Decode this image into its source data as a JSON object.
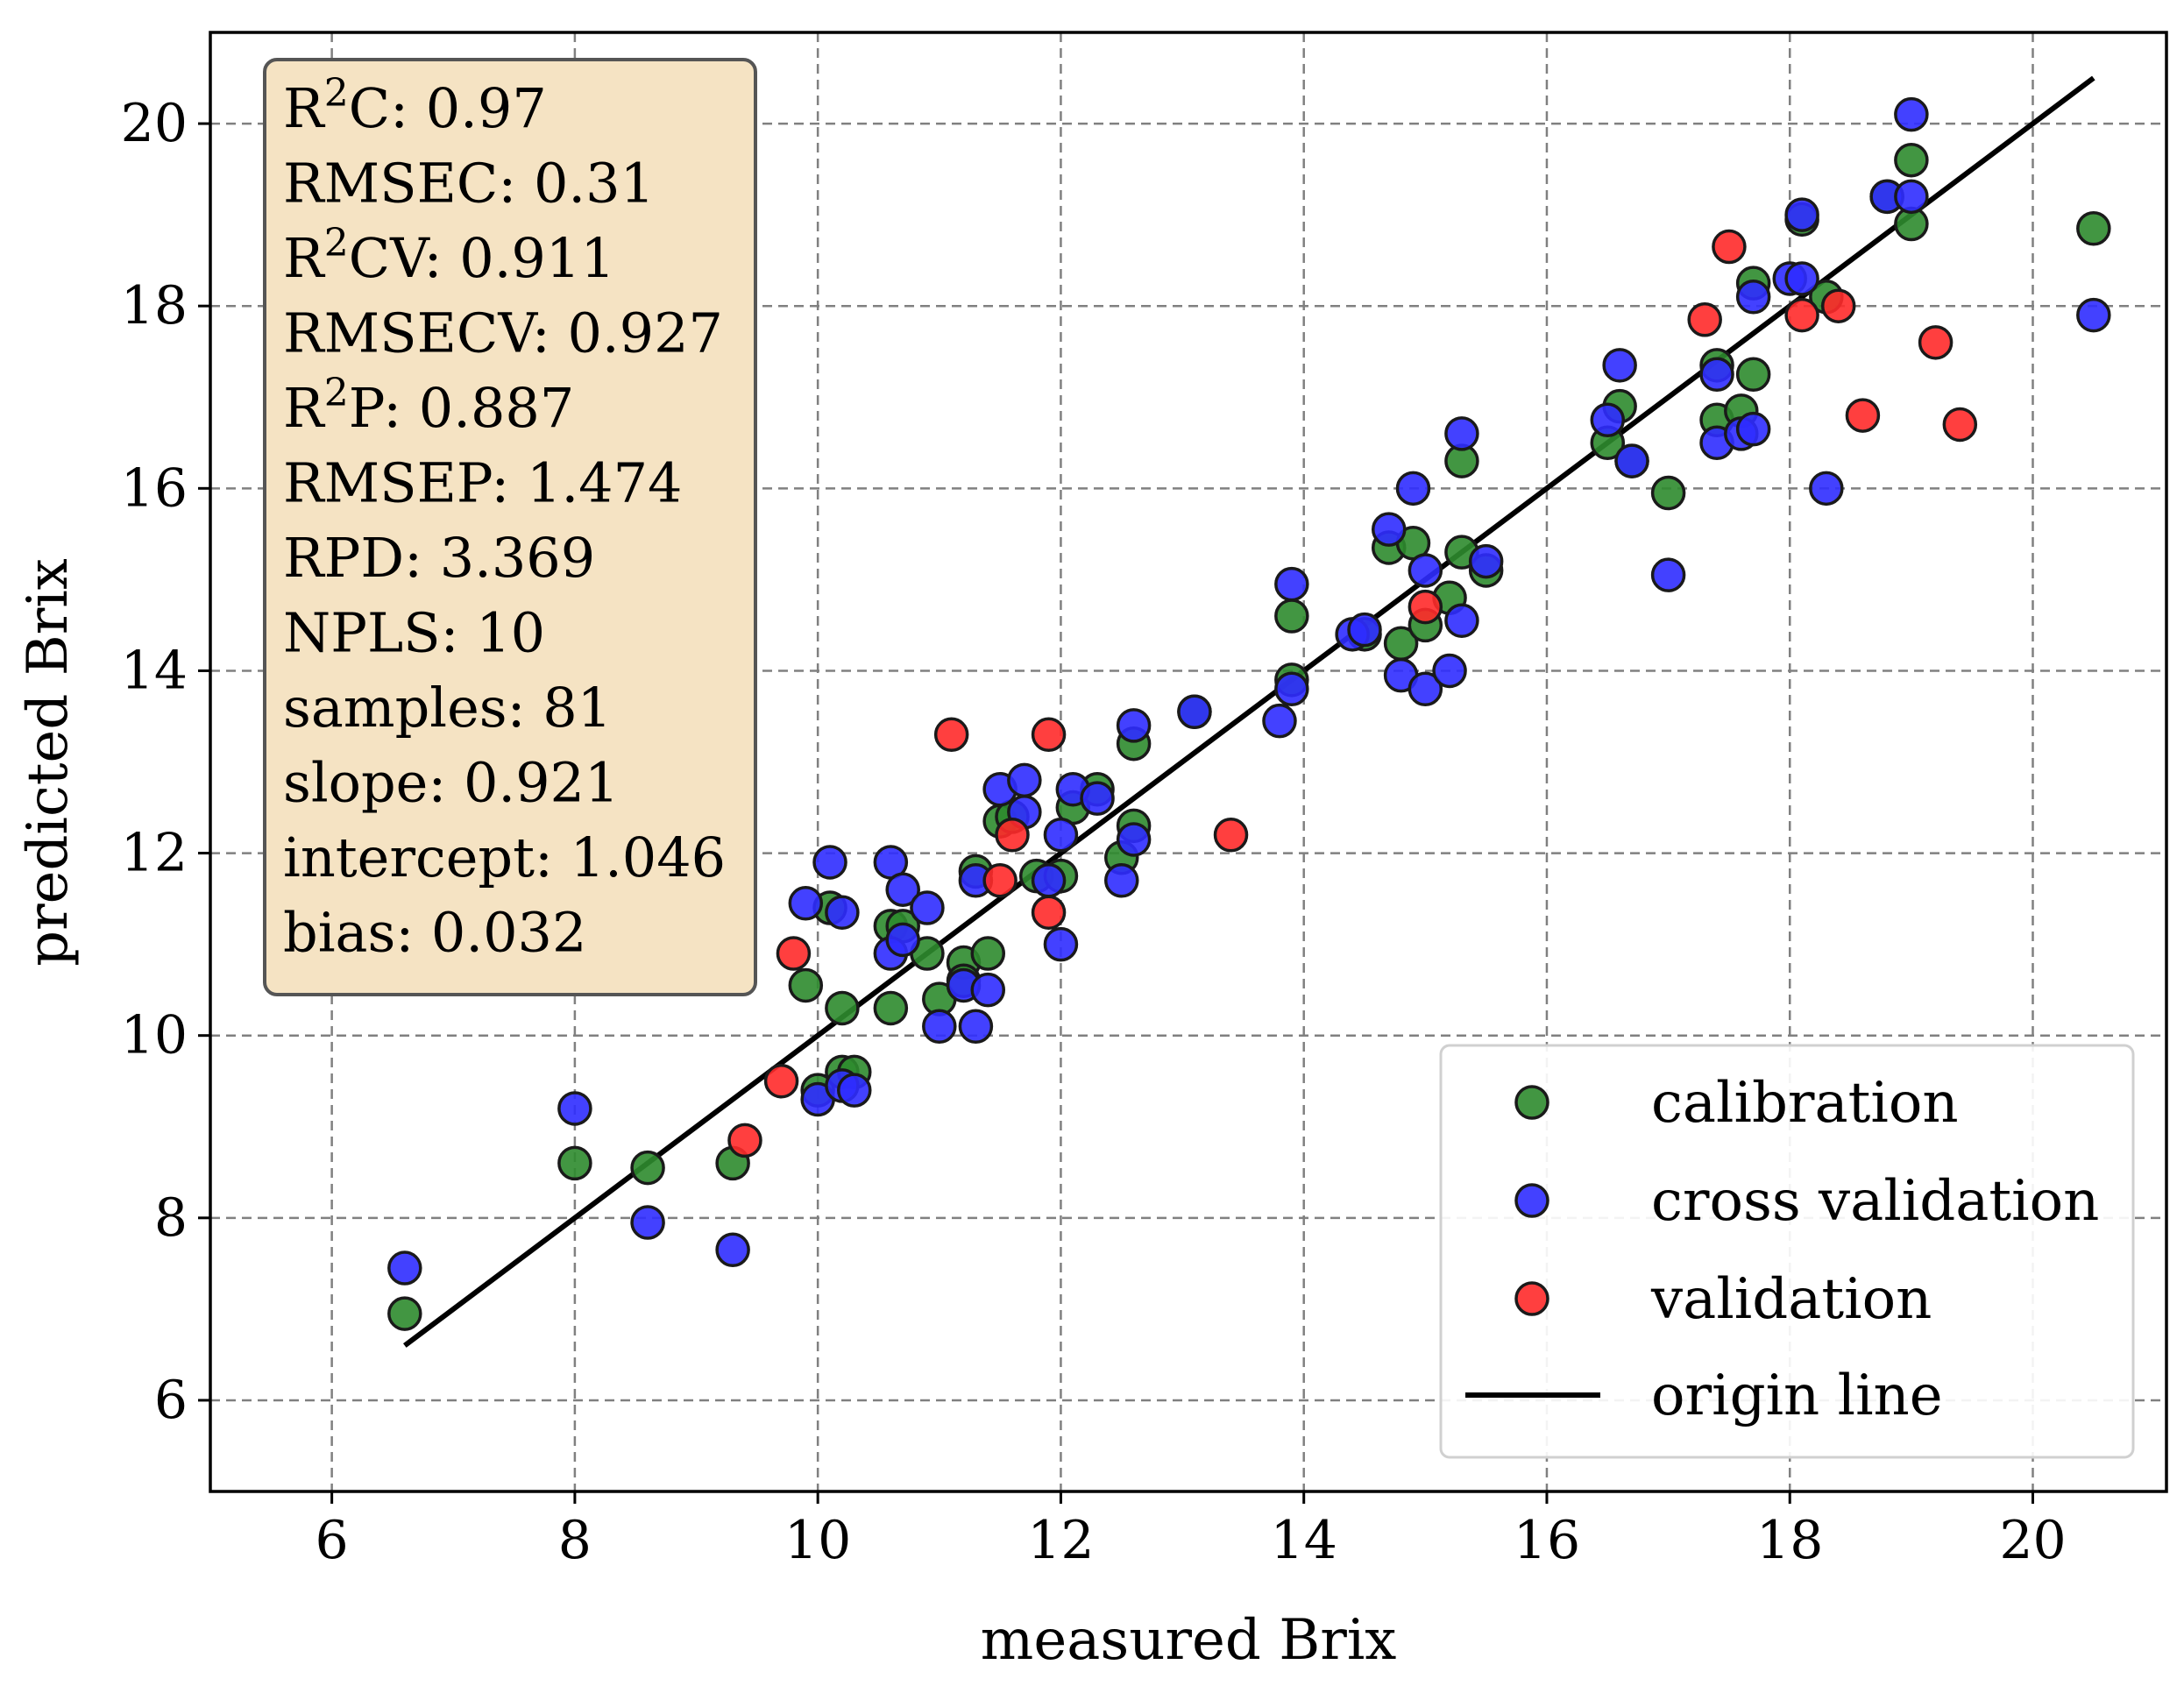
{
  "chart_data": {
    "type": "scatter",
    "xlabel": "measured Brix",
    "ylabel": "predicted Brix",
    "xlim": [
      5,
      21.1
    ],
    "ylim": [
      5,
      21
    ],
    "xticks": [
      6,
      8,
      10,
      12,
      14,
      16,
      18,
      20
    ],
    "yticks": [
      6,
      8,
      10,
      12,
      14,
      16,
      18,
      20
    ],
    "grid": true,
    "colors": {
      "calibration": "#2e8b2e",
      "cross_validation": "#2f2cff",
      "validation": "#ff2a2a",
      "origin_line": "#000000",
      "stats_box_fill": "#f5e3c3",
      "grid": "#808080"
    },
    "stats": [
      {
        "name": "R",
        "sup": "2",
        "suffix": "C",
        "value": ": 0.97"
      },
      {
        "name": "RMSEC",
        "sup": "",
        "suffix": "",
        "value": ": 0.31"
      },
      {
        "name": "R",
        "sup": "2",
        "suffix": "CV",
        "value": ": 0.911"
      },
      {
        "name": "RMSECV",
        "sup": "",
        "suffix": "",
        "value": ": 0.927"
      },
      {
        "name": "R",
        "sup": "2",
        "suffix": "P",
        "value": ": 0.887"
      },
      {
        "name": "RMSEP",
        "sup": "",
        "suffix": "",
        "value": ": 1.474"
      },
      {
        "name": "RPD",
        "sup": "",
        "suffix": "",
        "value": ": 3.369"
      },
      {
        "name": "NPLS",
        "sup": "",
        "suffix": "",
        "value": ": 10"
      },
      {
        "name": "samples",
        "sup": "",
        "suffix": "",
        "value": ": 81"
      },
      {
        "name": "slope",
        "sup": "",
        "suffix": "",
        "value": ": 0.921"
      },
      {
        "name": "intercept",
        "sup": "",
        "suffix": "",
        "value": ": 1.046"
      },
      {
        "name": "bias",
        "sup": "",
        "suffix": "",
        "value": ": 0.032"
      }
    ],
    "legend": {
      "placement": "bottom-right",
      "entries": [
        "calibration",
        "cross validation",
        "validation",
        "origin line"
      ]
    },
    "origin_line": {
      "x": [
        6.6,
        20.5
      ],
      "y": [
        6.6,
        20.5
      ]
    },
    "series": [
      {
        "name": "calibration",
        "points": [
          [
            6.6,
            6.95
          ],
          [
            8.0,
            8.6
          ],
          [
            8.6,
            8.55
          ],
          [
            9.3,
            8.6
          ],
          [
            9.9,
            10.55
          ],
          [
            10.0,
            9.4
          ],
          [
            10.2,
            9.6
          ],
          [
            10.2,
            10.3
          ],
          [
            10.3,
            9.6
          ],
          [
            10.1,
            11.4
          ],
          [
            10.6,
            11.2
          ],
          [
            10.6,
            10.3
          ],
          [
            10.7,
            11.2
          ],
          [
            10.9,
            10.9
          ],
          [
            11.0,
            10.4
          ],
          [
            11.2,
            10.8
          ],
          [
            11.3,
            11.8
          ],
          [
            11.4,
            10.9
          ],
          [
            11.2,
            10.6
          ],
          [
            11.5,
            12.35
          ],
          [
            11.6,
            12.4
          ],
          [
            11.8,
            11.75
          ],
          [
            12.0,
            11.75
          ],
          [
            12.1,
            12.5
          ],
          [
            12.3,
            12.7
          ],
          [
            12.5,
            11.95
          ],
          [
            12.6,
            13.2
          ],
          [
            12.6,
            12.3
          ],
          [
            13.1,
            13.55
          ],
          [
            13.9,
            14.6
          ],
          [
            13.9,
            13.9
          ],
          [
            14.5,
            14.4
          ],
          [
            14.7,
            15.35
          ],
          [
            14.8,
            14.3
          ],
          [
            14.9,
            15.4
          ],
          [
            15.0,
            14.5
          ],
          [
            15.2,
            14.8
          ],
          [
            15.3,
            15.3
          ],
          [
            15.3,
            16.3
          ],
          [
            15.5,
            15.1
          ],
          [
            16.5,
            16.5
          ],
          [
            16.6,
            16.9
          ],
          [
            16.7,
            16.3
          ],
          [
            17.0,
            15.95
          ],
          [
            17.4,
            17.35
          ],
          [
            17.4,
            16.75
          ],
          [
            17.6,
            16.85
          ],
          [
            17.7,
            17.25
          ],
          [
            17.7,
            18.25
          ],
          [
            18.1,
            18.95
          ],
          [
            18.3,
            18.1
          ],
          [
            18.8,
            19.2
          ],
          [
            19.0,
            19.6
          ],
          [
            19.0,
            18.9
          ],
          [
            20.5,
            18.85
          ]
        ]
      },
      {
        "name": "cross validation",
        "points": [
          [
            6.6,
            7.45
          ],
          [
            8.0,
            9.2
          ],
          [
            8.6,
            7.95
          ],
          [
            9.3,
            7.65
          ],
          [
            9.9,
            11.45
          ],
          [
            10.0,
            9.3
          ],
          [
            10.1,
            11.9
          ],
          [
            10.2,
            11.35
          ],
          [
            10.2,
            9.45
          ],
          [
            10.3,
            9.4
          ],
          [
            10.6,
            11.9
          ],
          [
            10.6,
            10.9
          ],
          [
            10.7,
            11.6
          ],
          [
            10.7,
            11.05
          ],
          [
            10.9,
            11.4
          ],
          [
            11.0,
            10.1
          ],
          [
            11.2,
            10.55
          ],
          [
            11.3,
            10.1
          ],
          [
            11.3,
            11.7
          ],
          [
            11.4,
            10.5
          ],
          [
            11.5,
            12.7
          ],
          [
            11.7,
            12.8
          ],
          [
            11.7,
            12.45
          ],
          [
            11.9,
            11.7
          ],
          [
            12.0,
            12.2
          ],
          [
            12.0,
            11.0
          ],
          [
            12.1,
            12.7
          ],
          [
            12.3,
            12.6
          ],
          [
            12.5,
            11.7
          ],
          [
            12.6,
            13.4
          ],
          [
            12.6,
            12.15
          ],
          [
            13.1,
            13.55
          ],
          [
            13.8,
            13.45
          ],
          [
            13.9,
            14.95
          ],
          [
            13.9,
            13.8
          ],
          [
            14.4,
            14.4
          ],
          [
            14.5,
            14.45
          ],
          [
            14.7,
            15.55
          ],
          [
            14.8,
            13.95
          ],
          [
            14.9,
            16.0
          ],
          [
            15.0,
            13.8
          ],
          [
            15.0,
            15.1
          ],
          [
            15.2,
            14.0
          ],
          [
            15.3,
            16.6
          ],
          [
            15.3,
            14.55
          ],
          [
            15.5,
            15.2
          ],
          [
            16.5,
            16.75
          ],
          [
            16.6,
            17.35
          ],
          [
            16.7,
            16.3
          ],
          [
            17.0,
            15.05
          ],
          [
            17.4,
            17.25
          ],
          [
            17.4,
            16.5
          ],
          [
            17.6,
            16.6
          ],
          [
            17.7,
            16.65
          ],
          [
            17.7,
            18.1
          ],
          [
            18.0,
            18.3
          ],
          [
            18.1,
            18.3
          ],
          [
            18.1,
            19.0
          ],
          [
            18.3,
            16.0
          ],
          [
            18.8,
            19.2
          ],
          [
            19.0,
            19.2
          ],
          [
            19.0,
            20.1
          ],
          [
            20.5,
            17.9
          ]
        ]
      },
      {
        "name": "validation",
        "points": [
          [
            9.4,
            8.85
          ],
          [
            9.7,
            9.5
          ],
          [
            9.8,
            10.9
          ],
          [
            11.1,
            13.3
          ],
          [
            11.5,
            11.7
          ],
          [
            11.6,
            12.2
          ],
          [
            11.9,
            13.3
          ],
          [
            11.9,
            11.35
          ],
          [
            13.4,
            12.2
          ],
          [
            15.0,
            14.7
          ],
          [
            17.3,
            17.85
          ],
          [
            17.5,
            18.65
          ],
          [
            18.1,
            17.9
          ],
          [
            18.4,
            18.0
          ],
          [
            18.6,
            16.8
          ],
          [
            19.2,
            17.6
          ],
          [
            19.4,
            16.7
          ]
        ]
      }
    ]
  }
}
